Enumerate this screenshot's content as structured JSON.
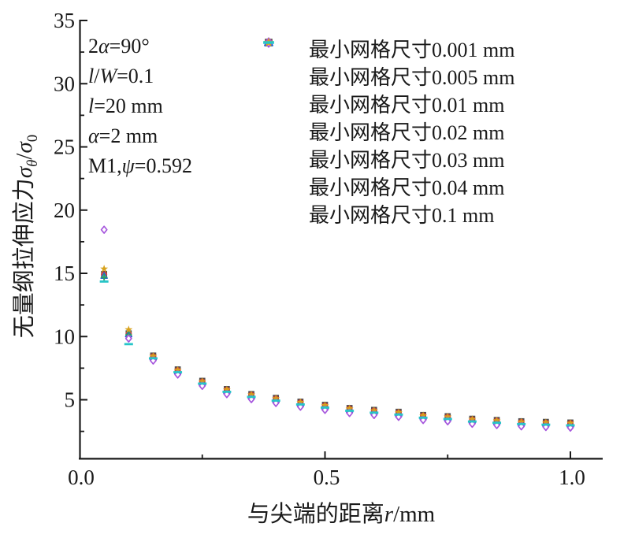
{
  "figure": {
    "background": "#ffffff",
    "spine_color": "#1a1a1a"
  },
  "annotation": {
    "lines": [
      [
        {
          "t": "2"
        },
        {
          "t": "α",
          "i": true
        },
        {
          "t": "=90°"
        }
      ],
      [
        {
          "t": "l",
          "i": true
        },
        {
          "t": "/"
        },
        {
          "t": "W",
          "i": true
        },
        {
          "t": "=0.1"
        }
      ],
      [
        {
          "t": "l",
          "i": true
        },
        {
          "t": "=20 mm"
        }
      ],
      [
        {
          "t": "α",
          "i": true
        },
        {
          "t": "=2 mm"
        }
      ],
      [
        {
          "t": "M1,"
        },
        {
          "t": "ψ",
          "i": true
        },
        {
          "t": "=0.592"
        }
      ]
    ]
  },
  "axes": {
    "x": {
      "label_segments": [
        {
          "t": "与尖端的距离"
        },
        {
          "t": "r",
          "i": true
        },
        {
          "t": "/mm"
        }
      ],
      "major_ticks": [
        {
          "v": 0,
          "t": "0.0"
        },
        {
          "v": 0.5,
          "t": "0.5"
        },
        {
          "v": 1.0,
          "t": "1.0"
        }
      ],
      "minor_ticks": [
        0.25,
        0.75
      ],
      "range": [
        0,
        1.065
      ]
    },
    "y": {
      "label_segments": [
        {
          "t": "无量纲拉伸应力"
        },
        {
          "t": "σ",
          "i": true
        },
        {
          "t": "θ",
          "i": true,
          "sub": true
        },
        {
          "t": "/"
        },
        {
          "t": "σ",
          "i": true
        },
        {
          "t": "0",
          "sub": true
        }
      ],
      "major_ticks": [
        {
          "v": 5,
          "t": "5"
        },
        {
          "v": 10,
          "t": "10"
        },
        {
          "v": 15,
          "t": "15"
        },
        {
          "v": 20,
          "t": "20"
        },
        {
          "v": 25,
          "t": "25"
        },
        {
          "v": 30,
          "t": "30"
        },
        {
          "v": 35,
          "t": "35"
        }
      ],
      "minor_ticks": [
        2.5,
        7.5,
        12.5,
        17.5,
        22.5,
        27.5,
        32.5
      ],
      "range": [
        0.3,
        35
      ]
    }
  },
  "chart_data": {
    "type": "scatter",
    "title": "",
    "xlabel": "与尖端的距离r/mm",
    "ylabel": "无量纲拉伸应力σθ/σ0",
    "xlim": [
      0,
      1.065
    ],
    "ylim": [
      0.3,
      35
    ],
    "grid": false,
    "legend_position": "upper right",
    "x": [
      0.05,
      0.1,
      0.15,
      0.2,
      0.25,
      0.3,
      0.35,
      0.4,
      0.45,
      0.5,
      0.55,
      0.6,
      0.65,
      0.7,
      0.75,
      0.8,
      0.85,
      0.9,
      0.95,
      1.0
    ],
    "series": [
      {
        "name": "最小网格尺寸0.001 mm",
        "marker": "open-square",
        "color": "#4f4f4f",
        "values": [
          14.95,
          10.25,
          8.5,
          7.4,
          6.5,
          5.85,
          5.45,
          5.15,
          4.85,
          4.6,
          4.35,
          4.2,
          4.05,
          3.8,
          3.7,
          3.5,
          3.4,
          3.3,
          3.25,
          3.2
        ]
      },
      {
        "name": "最小网格尺寸0.005 mm",
        "marker": "open-circle",
        "color": "#e0392f",
        "values": [
          14.9,
          10.2,
          8.43,
          7.33,
          6.43,
          5.78,
          5.38,
          5.08,
          4.78,
          4.53,
          4.28,
          4.13,
          3.98,
          3.73,
          3.63,
          3.43,
          3.33,
          3.23,
          3.18,
          3.13
        ]
      },
      {
        "name": "最小网格尺寸0.01 mm",
        "marker": "open-triangle",
        "color": "#2666cb",
        "values": [
          14.8,
          10.18,
          8.36,
          7.26,
          6.36,
          5.71,
          5.31,
          5.01,
          4.71,
          4.46,
          4.21,
          4.06,
          3.91,
          3.66,
          3.56,
          3.36,
          3.26,
          3.16,
          3.11,
          3.06
        ]
      },
      {
        "name": "最小网格尺寸0.02 mm",
        "marker": "plus",
        "color": "#2f9e63",
        "values": [
          14.7,
          10.15,
          8.3,
          7.2,
          6.3,
          5.65,
          5.25,
          4.95,
          4.65,
          4.4,
          4.15,
          4.0,
          3.85,
          3.6,
          3.5,
          3.3,
          3.2,
          3.1,
          3.05,
          3.0
        ]
      },
      {
        "name": "最小网格尺寸0.03 mm",
        "marker": "open-diamond",
        "color": "#a656dd",
        "values": [
          18.45,
          9.85,
          8.1,
          7.0,
          6.1,
          5.45,
          5.05,
          4.75,
          4.45,
          4.2,
          3.95,
          3.8,
          3.65,
          3.4,
          3.3,
          3.1,
          3.0,
          2.9,
          2.85,
          2.8
        ]
      },
      {
        "name": "最小网格尺寸0.04 mm",
        "marker": "star",
        "color": "#d7a21c",
        "values": [
          15.35,
          10.55,
          8.45,
          7.35,
          6.45,
          5.8,
          5.4,
          5.1,
          4.8,
          4.55,
          4.3,
          4.15,
          4.0,
          3.75,
          3.65,
          3.45,
          3.35,
          3.25,
          3.2,
          3.15
        ]
      },
      {
        "name": "最小网格尺寸0.1 mm",
        "marker": "dash",
        "color": "#26c5c8",
        "values": [
          14.35,
          9.4,
          8.28,
          7.18,
          6.28,
          5.63,
          5.23,
          4.93,
          4.63,
          4.38,
          4.13,
          3.98,
          3.83,
          3.58,
          3.48,
          3.28,
          3.18,
          3.08,
          3.03,
          2.98
        ]
      }
    ]
  }
}
